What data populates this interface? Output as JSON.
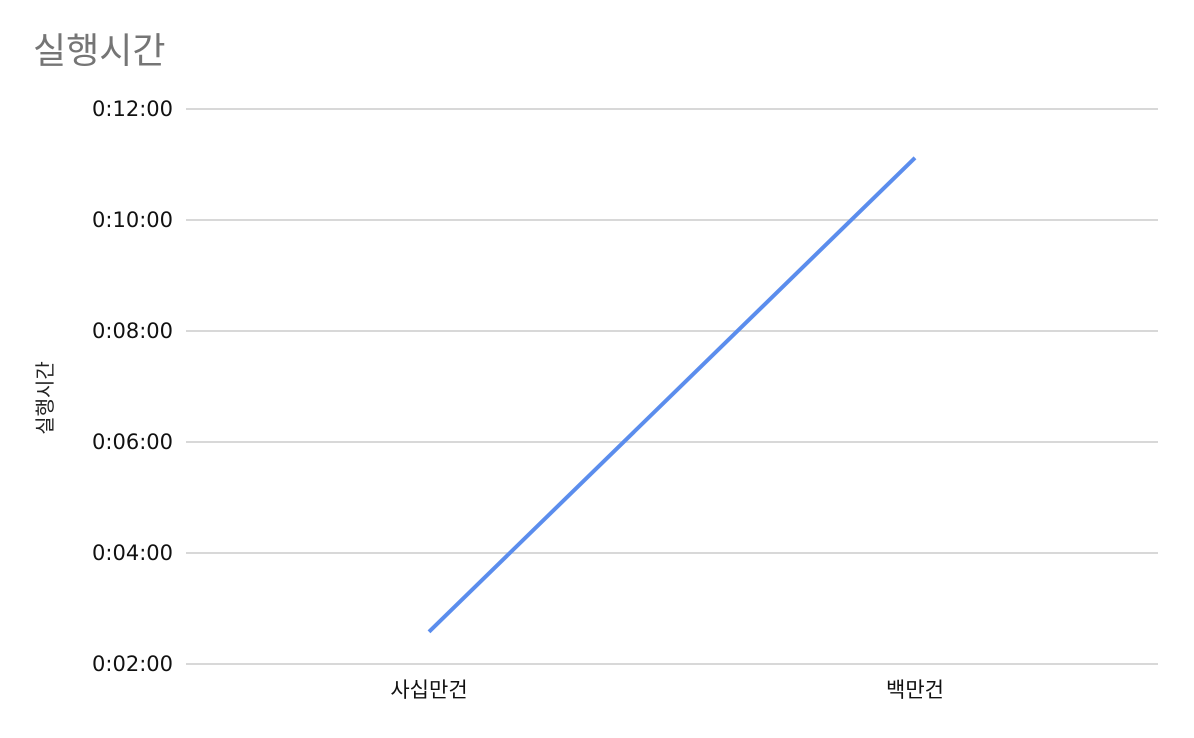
{
  "chart_data": {
    "type": "line",
    "title": "실행시간",
    "xlabel": "",
    "ylabel": "실행시간",
    "categories": [
      "사십만건",
      "백만건"
    ],
    "yticks": [
      "0:02:00",
      "0:04:00",
      "0:06:00",
      "0:08:00",
      "0:10:00",
      "0:12:00"
    ],
    "y_unit": "minutes",
    "ylim": [
      2,
      12
    ],
    "grid": true,
    "legend": "none",
    "series": [
      {
        "values": [
          2.58,
          11.12
        ],
        "value_labels": [
          "0:02:35",
          "0:11:07"
        ],
        "color": "#5b8ded"
      }
    ]
  }
}
